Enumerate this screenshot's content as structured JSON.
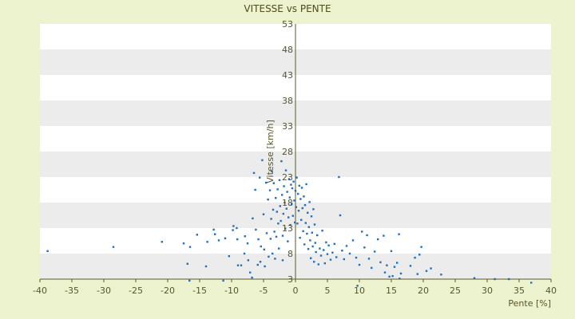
{
  "chart_data": {
    "type": "scatter",
    "title": "VITESSE vs PENTE",
    "xlabel": "Pente [%]",
    "ylabel": "Vitesse [km/h]",
    "xlim": [
      -40,
      40
    ],
    "ylim": [
      3,
      53
    ],
    "xticks": [
      -40,
      -35,
      -30,
      -25,
      -20,
      -15,
      -10,
      -5,
      0,
      5,
      10,
      15,
      20,
      25,
      30,
      35,
      40
    ],
    "yticks": [
      3,
      8,
      13,
      18,
      23,
      28,
      33,
      38,
      43,
      48,
      53
    ],
    "grid": "horizontal bands",
    "legend": "none",
    "colors": {
      "points": "#1f6fc0",
      "axis": "#5a5a2a",
      "band_light": "#ffffff",
      "band_dark": "#ececec",
      "background": "#eef3cf"
    },
    "series": [
      {
        "points": [
          [
            -38.8,
            8.5
          ],
          [
            -28.5,
            9.3
          ],
          [
            -20.9,
            10.3
          ],
          [
            -17.5,
            10.0
          ],
          [
            -16.9,
            6.0
          ],
          [
            -16.6,
            2.7
          ],
          [
            -16.5,
            9.3
          ],
          [
            -15.4,
            11.7
          ],
          [
            -14.0,
            5.5
          ],
          [
            -13.8,
            10.3
          ],
          [
            -12.8,
            12.7
          ],
          [
            -12.6,
            11.8
          ],
          [
            -12.0,
            10.6
          ],
          [
            -11.3,
            2.7
          ],
          [
            -11.0,
            11.0
          ],
          [
            -10.4,
            7.5
          ],
          [
            -9.8,
            12.6
          ],
          [
            -9.7,
            13.4
          ],
          [
            -9.2,
            13.0
          ],
          [
            -9.1,
            10.8
          ],
          [
            -9.0,
            5.7
          ],
          [
            -8.5,
            5.7
          ],
          [
            -8.0,
            8.0
          ],
          [
            -7.9,
            11.4
          ],
          [
            -7.5,
            10.0
          ],
          [
            -7.4,
            6.7
          ],
          [
            -7.1,
            4.3
          ],
          [
            -6.8,
            3.3
          ],
          [
            -6.7,
            14.9
          ],
          [
            -6.5,
            23.8
          ],
          [
            -6.3,
            20.5
          ],
          [
            -6.2,
            12.7
          ],
          [
            -5.9,
            5.8
          ],
          [
            -5.8,
            10.8
          ],
          [
            -5.6,
            22.9
          ],
          [
            -5.5,
            6.4
          ],
          [
            -5.4,
            9.4
          ],
          [
            -5.2,
            26.3
          ],
          [
            -5.0,
            15.7
          ],
          [
            -4.9,
            8.8
          ],
          [
            -4.8,
            5.5
          ],
          [
            -4.6,
            21.9
          ],
          [
            -4.5,
            12.0
          ],
          [
            -4.3,
            18.6
          ],
          [
            -4.2,
            7.4
          ],
          [
            -4.0,
            20.4
          ],
          [
            -3.9,
            10.9
          ],
          [
            -3.8,
            14.8
          ],
          [
            -3.7,
            24.1
          ],
          [
            -3.6,
            8.0
          ],
          [
            -3.5,
            16.6
          ],
          [
            -3.4,
            21.8
          ],
          [
            -3.3,
            12.3
          ],
          [
            -3.2,
            7.0
          ],
          [
            -3.1,
            18.9
          ],
          [
            -3.0,
            11.3
          ],
          [
            -2.9,
            16.2
          ],
          [
            -2.8,
            20.6
          ],
          [
            -2.7,
            13.9
          ],
          [
            -2.6,
            9.0
          ],
          [
            -2.5,
            22.4
          ],
          [
            -2.4,
            17.3
          ],
          [
            -2.3,
            14.4
          ],
          [
            -2.2,
            26.1
          ],
          [
            -2.1,
            19.5
          ],
          [
            -2.0,
            11.5
          ],
          [
            -2.0,
            6.7
          ],
          [
            -1.9,
            15.8
          ],
          [
            -1.8,
            21.2
          ],
          [
            -1.7,
            18.0
          ],
          [
            -1.6,
            12.9
          ],
          [
            -1.5,
            24.3
          ],
          [
            -1.4,
            16.8
          ],
          [
            -1.3,
            20.1
          ],
          [
            -1.2,
            10.4
          ],
          [
            -1.1,
            15.1
          ],
          [
            -1.0,
            22.6
          ],
          [
            -0.9,
            19.0
          ],
          [
            -0.8,
            13.6
          ],
          [
            -0.7,
            21.5
          ],
          [
            -0.6,
            17.7
          ],
          [
            -0.5,
            20.8
          ],
          [
            -0.4,
            15.4
          ],
          [
            -0.3,
            22.1
          ],
          [
            -0.2,
            18.4
          ],
          [
            -0.1,
            14.1
          ],
          [
            0.0,
            20.3
          ],
          [
            0.1,
            17.1
          ],
          [
            0.2,
            22.9
          ],
          [
            0.3,
            13.9
          ],
          [
            0.4,
            19.7
          ],
          [
            0.5,
            16.4
          ],
          [
            0.6,
            21.3
          ],
          [
            0.7,
            11.1
          ],
          [
            0.8,
            18.7
          ],
          [
            0.9,
            14.6
          ],
          [
            1.0,
            20.9
          ],
          [
            1.1,
            16.9
          ],
          [
            1.2,
            12.4
          ],
          [
            1.3,
            19.2
          ],
          [
            1.4,
            9.8
          ],
          [
            1.5,
            17.5
          ],
          [
            1.6,
            14.0
          ],
          [
            1.7,
            21.6
          ],
          [
            1.8,
            11.9
          ],
          [
            1.9,
            16.0
          ],
          [
            2.0,
            8.9
          ],
          [
            2.1,
            13.2
          ],
          [
            2.2,
            18.1
          ],
          [
            2.3,
            10.6
          ],
          [
            2.4,
            7.1
          ],
          [
            2.5,
            15.3
          ],
          [
            2.6,
            12.1
          ],
          [
            2.7,
            9.4
          ],
          [
            2.8,
            16.7
          ],
          [
            2.9,
            6.4
          ],
          [
            3.0,
            13.7
          ],
          [
            3.1,
            10.1
          ],
          [
            3.2,
            8.3
          ],
          [
            3.4,
            11.6
          ],
          [
            3.6,
            5.9
          ],
          [
            3.8,
            9.0
          ],
          [
            4.0,
            7.6
          ],
          [
            4.2,
            12.5
          ],
          [
            4.4,
            8.7
          ],
          [
            4.6,
            6.1
          ],
          [
            4.8,
            10.2
          ],
          [
            5.0,
            7.9
          ],
          [
            5.2,
            9.6
          ],
          [
            5.5,
            6.8
          ],
          [
            5.8,
            8.2
          ],
          [
            6.1,
            9.9
          ],
          [
            6.4,
            7.3
          ],
          [
            6.8,
            23.0
          ],
          [
            7.0,
            15.5
          ],
          [
            7.3,
            8.6
          ],
          [
            7.6,
            6.9
          ],
          [
            8.0,
            9.5
          ],
          [
            8.5,
            8.0
          ],
          [
            9.0,
            10.6
          ],
          [
            9.5,
            7.2
          ],
          [
            9.7,
            1.7
          ],
          [
            10.0,
            5.8
          ],
          [
            10.4,
            12.3
          ],
          [
            10.8,
            9.2
          ],
          [
            11.2,
            11.6
          ],
          [
            11.5,
            7.0
          ],
          [
            11.9,
            5.2
          ],
          [
            12.4,
            8.4
          ],
          [
            12.9,
            10.8
          ],
          [
            13.3,
            6.3
          ],
          [
            13.8,
            11.5
          ],
          [
            14.0,
            4.3
          ],
          [
            14.3,
            5.7
          ],
          [
            14.7,
            3.5
          ],
          [
            15.0,
            8.5
          ],
          [
            15.2,
            3.6
          ],
          [
            15.5,
            5.4
          ],
          [
            15.9,
            6.2
          ],
          [
            16.2,
            11.8
          ],
          [
            16.3,
            3.1
          ],
          [
            16.5,
            4.1
          ],
          [
            18.0,
            5.6
          ],
          [
            18.7,
            7.2
          ],
          [
            19.1,
            4.0
          ],
          [
            19.4,
            7.8
          ],
          [
            19.7,
            9.3
          ],
          [
            20.5,
            4.6
          ],
          [
            21.2,
            5.1
          ],
          [
            22.8,
            3.9
          ],
          [
            28.0,
            3.2
          ],
          [
            31.2,
            3.0
          ],
          [
            33.4,
            3.0
          ],
          [
            36.9,
            2.3
          ]
        ]
      }
    ]
  }
}
